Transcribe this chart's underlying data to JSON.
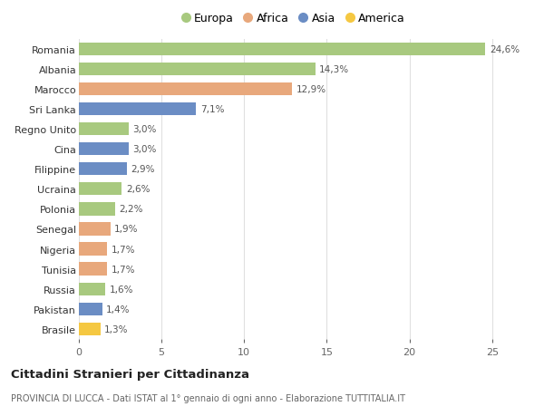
{
  "categories": [
    "Romania",
    "Albania",
    "Marocco",
    "Sri Lanka",
    "Regno Unito",
    "Cina",
    "Filippine",
    "Ucraina",
    "Polonia",
    "Senegal",
    "Nigeria",
    "Tunisia",
    "Russia",
    "Pakistan",
    "Brasile"
  ],
  "values": [
    24.6,
    14.3,
    12.9,
    7.1,
    3.0,
    3.0,
    2.9,
    2.6,
    2.2,
    1.9,
    1.7,
    1.7,
    1.6,
    1.4,
    1.3
  ],
  "labels": [
    "24,6%",
    "14,3%",
    "12,9%",
    "7,1%",
    "3,0%",
    "3,0%",
    "2,9%",
    "2,6%",
    "2,2%",
    "1,9%",
    "1,7%",
    "1,7%",
    "1,6%",
    "1,4%",
    "1,3%"
  ],
  "continents": [
    "Europa",
    "Europa",
    "Africa",
    "Asia",
    "Europa",
    "Asia",
    "Asia",
    "Europa",
    "Europa",
    "Africa",
    "Africa",
    "Africa",
    "Europa",
    "Asia",
    "America"
  ],
  "colors": {
    "Europa": "#a8c97f",
    "Africa": "#e8a87c",
    "Asia": "#6b8dc4",
    "America": "#f5c842"
  },
  "legend_order": [
    "Europa",
    "Africa",
    "Asia",
    "America"
  ],
  "title": "Cittadini Stranieri per Cittadinanza",
  "subtitle": "PROVINCIA DI LUCCA - Dati ISTAT al 1° gennaio di ogni anno - Elaborazione TUTTITALIA.IT",
  "xlim": [
    0,
    26
  ],
  "xticks": [
    0,
    5,
    10,
    15,
    20,
    25
  ],
  "background_color": "#ffffff",
  "grid_color": "#e0e0e0",
  "bar_height": 0.65
}
